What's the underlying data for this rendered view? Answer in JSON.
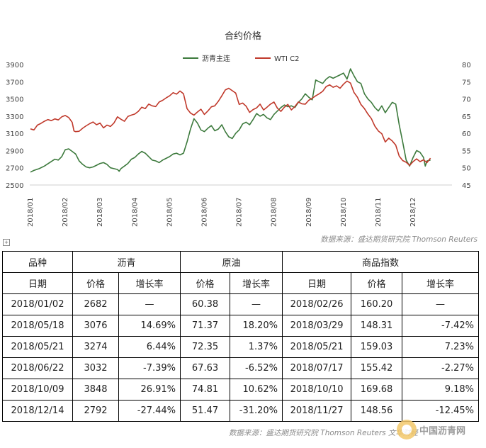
{
  "chart_data": {
    "type": "line",
    "title": "合约价格",
    "x_tick_labels": [
      "2018/01",
      "2018/02",
      "2018/03",
      "2018/04",
      "2018/05",
      "2018/06",
      "2018/07",
      "2018/08",
      "2018/09",
      "2018/10",
      "2018/11",
      "2018/12"
    ],
    "y_left": {
      "ticks": [
        2500,
        2700,
        2900,
        3100,
        3300,
        3500,
        3700,
        3900
      ],
      "lim": [
        2500,
        3900
      ]
    },
    "y_right": {
      "ticks": [
        45,
        50,
        55,
        60,
        65,
        70,
        75,
        80
      ],
      "lim": [
        45,
        80
      ]
    },
    "legend_position": "top",
    "series": [
      {
        "name": "沥青主连",
        "axis": "left",
        "color": "#3d7a3d",
        "points": [
          [
            0,
            2650
          ],
          [
            0.1,
            2670
          ],
          [
            0.25,
            2690
          ],
          [
            0.4,
            2720
          ],
          [
            0.55,
            2760
          ],
          [
            0.7,
            2800
          ],
          [
            0.8,
            2790
          ],
          [
            0.9,
            2830
          ],
          [
            1.0,
            2910
          ],
          [
            1.1,
            2920
          ],
          [
            1.2,
            2890
          ],
          [
            1.3,
            2860
          ],
          [
            1.4,
            2780
          ],
          [
            1.5,
            2740
          ],
          [
            1.6,
            2710
          ],
          [
            1.7,
            2700
          ],
          [
            1.8,
            2710
          ],
          [
            1.9,
            2730
          ],
          [
            2.0,
            2750
          ],
          [
            2.1,
            2760
          ],
          [
            2.2,
            2740
          ],
          [
            2.3,
            2700
          ],
          [
            2.4,
            2690
          ],
          [
            2.5,
            2680
          ],
          [
            2.55,
            2660
          ],
          [
            2.6,
            2690
          ],
          [
            2.7,
            2720
          ],
          [
            2.8,
            2750
          ],
          [
            2.9,
            2800
          ],
          [
            3.0,
            2820
          ],
          [
            3.1,
            2860
          ],
          [
            3.2,
            2890
          ],
          [
            3.3,
            2870
          ],
          [
            3.4,
            2830
          ],
          [
            3.5,
            2790
          ],
          [
            3.6,
            2780
          ],
          [
            3.7,
            2760
          ],
          [
            3.8,
            2790
          ],
          [
            3.9,
            2810
          ],
          [
            4.0,
            2830
          ],
          [
            4.1,
            2860
          ],
          [
            4.2,
            2870
          ],
          [
            4.3,
            2850
          ],
          [
            4.4,
            2870
          ],
          [
            4.5,
            3000
          ],
          [
            4.6,
            3150
          ],
          [
            4.7,
            3270
          ],
          [
            4.8,
            3220
          ],
          [
            4.9,
            3140
          ],
          [
            5.0,
            3120
          ],
          [
            5.1,
            3160
          ],
          [
            5.2,
            3190
          ],
          [
            5.3,
            3130
          ],
          [
            5.4,
            3150
          ],
          [
            5.5,
            3200
          ],
          [
            5.6,
            3120
          ],
          [
            5.7,
            3060
          ],
          [
            5.8,
            3040
          ],
          [
            5.9,
            3100
          ],
          [
            6.0,
            3140
          ],
          [
            6.1,
            3210
          ],
          [
            6.2,
            3230
          ],
          [
            6.3,
            3200
          ],
          [
            6.4,
            3260
          ],
          [
            6.5,
            3330
          ],
          [
            6.6,
            3300
          ],
          [
            6.7,
            3320
          ],
          [
            6.8,
            3280
          ],
          [
            6.9,
            3260
          ],
          [
            7.0,
            3320
          ],
          [
            7.1,
            3360
          ],
          [
            7.2,
            3400
          ],
          [
            7.3,
            3430
          ],
          [
            7.4,
            3410
          ],
          [
            7.5,
            3420
          ],
          [
            7.6,
            3400
          ],
          [
            7.7,
            3460
          ],
          [
            7.8,
            3500
          ],
          [
            7.9,
            3560
          ],
          [
            8.0,
            3520
          ],
          [
            8.1,
            3490
          ],
          [
            8.2,
            3720
          ],
          [
            8.3,
            3700
          ],
          [
            8.4,
            3680
          ],
          [
            8.5,
            3730
          ],
          [
            8.6,
            3760
          ],
          [
            8.7,
            3740
          ],
          [
            8.8,
            3760
          ],
          [
            8.9,
            3780
          ],
          [
            9.0,
            3800
          ],
          [
            9.1,
            3730
          ],
          [
            9.2,
            3850
          ],
          [
            9.3,
            3770
          ],
          [
            9.4,
            3700
          ],
          [
            9.5,
            3680
          ],
          [
            9.6,
            3560
          ],
          [
            9.7,
            3500
          ],
          [
            9.8,
            3460
          ],
          [
            9.9,
            3400
          ],
          [
            10.0,
            3360
          ],
          [
            10.1,
            3420
          ],
          [
            10.2,
            3340
          ],
          [
            10.3,
            3400
          ],
          [
            10.4,
            3460
          ],
          [
            10.5,
            3440
          ],
          [
            10.6,
            3200
          ],
          [
            10.7,
            3000
          ],
          [
            10.8,
            2790
          ],
          [
            10.9,
            2720
          ],
          [
            11.0,
            2820
          ],
          [
            11.1,
            2900
          ],
          [
            11.2,
            2880
          ],
          [
            11.3,
            2820
          ],
          [
            11.35,
            2720
          ],
          [
            11.4,
            2780
          ],
          [
            11.5,
            2790
          ]
        ]
      },
      {
        "name": "WTI C2",
        "axis": "right",
        "color": "#c0392b",
        "points": [
          [
            0,
            61.3
          ],
          [
            0.1,
            61.0
          ],
          [
            0.2,
            62.4
          ],
          [
            0.3,
            62.9
          ],
          [
            0.4,
            63.5
          ],
          [
            0.5,
            64.0
          ],
          [
            0.6,
            63.7
          ],
          [
            0.7,
            64.2
          ],
          [
            0.8,
            63.9
          ],
          [
            0.9,
            64.8
          ],
          [
            1.0,
            65.2
          ],
          [
            1.1,
            64.6
          ],
          [
            1.2,
            63.2
          ],
          [
            1.25,
            60.7
          ],
          [
            1.3,
            60.5
          ],
          [
            1.4,
            60.6
          ],
          [
            1.5,
            61.5
          ],
          [
            1.6,
            62.2
          ],
          [
            1.7,
            62.8
          ],
          [
            1.8,
            63.3
          ],
          [
            1.9,
            62.5
          ],
          [
            2.0,
            63.0
          ],
          [
            2.1,
            61.6
          ],
          [
            2.2,
            62.4
          ],
          [
            2.3,
            62.0
          ],
          [
            2.4,
            63.0
          ],
          [
            2.5,
            64.8
          ],
          [
            2.6,
            64.1
          ],
          [
            2.7,
            63.5
          ],
          [
            2.8,
            64.9
          ],
          [
            2.9,
            65.3
          ],
          [
            3.0,
            65.6
          ],
          [
            3.1,
            66.4
          ],
          [
            3.2,
            67.6
          ],
          [
            3.3,
            67.2
          ],
          [
            3.4,
            68.5
          ],
          [
            3.5,
            68.0
          ],
          [
            3.6,
            67.8
          ],
          [
            3.7,
            69.1
          ],
          [
            3.8,
            69.6
          ],
          [
            3.9,
            70.3
          ],
          [
            4.0,
            70.9
          ],
          [
            4.1,
            71.8
          ],
          [
            4.2,
            71.4
          ],
          [
            4.3,
            72.3
          ],
          [
            4.4,
            71.5
          ],
          [
            4.5,
            67.2
          ],
          [
            4.6,
            65.9
          ],
          [
            4.7,
            65.3
          ],
          [
            4.8,
            66.2
          ],
          [
            4.9,
            67.0
          ],
          [
            5.0,
            65.5
          ],
          [
            5.1,
            66.5
          ],
          [
            5.2,
            67.7
          ],
          [
            5.3,
            68.0
          ],
          [
            5.4,
            69.3
          ],
          [
            5.5,
            70.9
          ],
          [
            5.6,
            72.6
          ],
          [
            5.7,
            73.1
          ],
          [
            5.8,
            72.4
          ],
          [
            5.9,
            71.7
          ],
          [
            6.0,
            68.4
          ],
          [
            6.1,
            68.8
          ],
          [
            6.2,
            67.9
          ],
          [
            6.3,
            66.1
          ],
          [
            6.4,
            66.9
          ],
          [
            6.5,
            67.4
          ],
          [
            6.6,
            68.5
          ],
          [
            6.7,
            66.8
          ],
          [
            6.8,
            67.6
          ],
          [
            6.9,
            68.5
          ],
          [
            7.0,
            69.1
          ],
          [
            7.1,
            67.3
          ],
          [
            7.2,
            66.4
          ],
          [
            7.3,
            67.6
          ],
          [
            7.4,
            68.4
          ],
          [
            7.5,
            66.8
          ],
          [
            7.6,
            67.8
          ],
          [
            7.7,
            69.1
          ],
          [
            7.8,
            68.6
          ],
          [
            7.9,
            68.5
          ],
          [
            8.0,
            69.6
          ],
          [
            8.1,
            70.2
          ],
          [
            8.2,
            70.9
          ],
          [
            8.3,
            71.5
          ],
          [
            8.4,
            72.2
          ],
          [
            8.5,
            73.6
          ],
          [
            8.6,
            74.1
          ],
          [
            8.7,
            73.4
          ],
          [
            8.8,
            73.8
          ],
          [
            8.9,
            73.1
          ],
          [
            9.0,
            74.3
          ],
          [
            9.1,
            75.2
          ],
          [
            9.2,
            74.6
          ],
          [
            9.3,
            71.9
          ],
          [
            9.4,
            70.5
          ],
          [
            9.5,
            68.4
          ],
          [
            9.6,
            67.2
          ],
          [
            9.7,
            65.6
          ],
          [
            9.8,
            64.3
          ],
          [
            9.9,
            62.1
          ],
          [
            10.0,
            60.7
          ],
          [
            10.1,
            59.9
          ],
          [
            10.2,
            57.5
          ],
          [
            10.3,
            58.6
          ],
          [
            10.4,
            57.8
          ],
          [
            10.5,
            56.6
          ],
          [
            10.6,
            53.4
          ],
          [
            10.7,
            52.1
          ],
          [
            10.8,
            51.6
          ],
          [
            10.9,
            50.7
          ],
          [
            11.0,
            51.8
          ],
          [
            11.1,
            52.6
          ],
          [
            11.2,
            51.8
          ],
          [
            11.3,
            52.3
          ],
          [
            11.4,
            51.5
          ],
          [
            11.5,
            52.8
          ]
        ]
      }
    ]
  },
  "source_top": "数据来源：盛达期货研究院 Thomson Reuters",
  "source_bottom": "数据来源：盛达期货研究院 Thomson Reuters 文华财经",
  "table": {
    "header1": [
      "品种",
      "沥青",
      "原油",
      "商品指数"
    ],
    "header2": [
      "日期",
      "价格",
      "增长率",
      "价格",
      "增长率",
      "日期",
      "价格",
      "增长率"
    ],
    "rows": [
      [
        "2018/01/02",
        "2682",
        "—",
        "60.38",
        "—",
        "2018/02/26",
        "160.20",
        "—"
      ],
      [
        "2018/05/18",
        "3076",
        "14.69%",
        "71.37",
        "18.20%",
        "2018/03/29",
        "148.31",
        "-7.42%"
      ],
      [
        "2018/05/21",
        "3274",
        "6.44%",
        "72.35",
        "1.37%",
        "2018/05/21",
        "159.03",
        "7.23%"
      ],
      [
        "2018/06/22",
        "3032",
        "-7.39%",
        "67.63",
        "-6.52%",
        "2018/07/17",
        "155.42",
        "-2.27%"
      ],
      [
        "2018/10/09",
        "3848",
        "26.91%",
        "74.81",
        "10.62%",
        "2018/10/10",
        "169.68",
        "9.18%"
      ],
      [
        "2018/12/14",
        "2792",
        "-27.44%",
        "51.47",
        "-31.20%",
        "2018/11/27",
        "148.56",
        "-12.45%"
      ]
    ]
  },
  "watermark": {
    "text": "中国沥青网",
    "icon": "asphalt-logo-icon"
  }
}
